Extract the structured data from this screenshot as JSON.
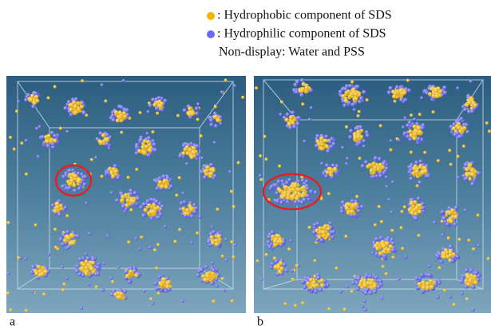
{
  "legend": {
    "items": [
      {
        "label": ": Hydrophobic component of SDS"
      },
      {
        "label": ": Hydrophilic component of SDS"
      }
    ],
    "note": "Non-display: Water and PSS"
  },
  "panels": [
    {
      "label": "a"
    },
    {
      "label": "b"
    }
  ]
}
